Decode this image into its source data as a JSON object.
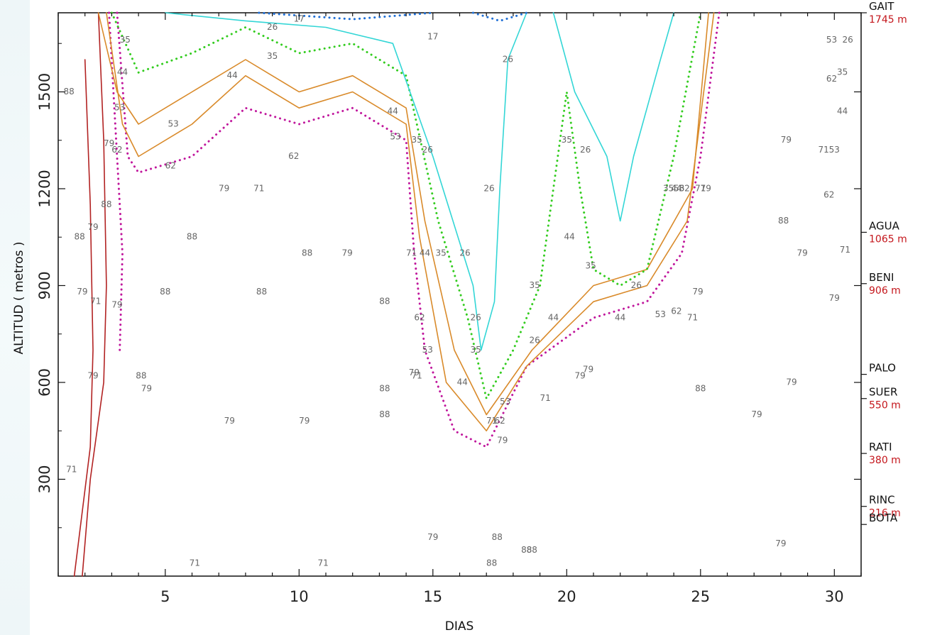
{
  "chart_data": {
    "type": "contour",
    "xlabel": "DIAS",
    "ylabel": "ALTITUD ( metros )",
    "xlim": [
      1,
      31
    ],
    "ylim": [
      0,
      1745
    ],
    "x_ticks": [
      5,
      10,
      15,
      20,
      25,
      30
    ],
    "y_ticks": [
      300,
      600,
      900,
      1200,
      1500
    ],
    "contour_levels": [
      17,
      26,
      35,
      44,
      53,
      62,
      71,
      79,
      88
    ],
    "level_colors": {
      "17": "#1f6fd6",
      "26": "#33d6d6",
      "35": "#33cc1f",
      "44": "#d98a2a",
      "53": "#d98a2a",
      "62": "#c0169c",
      "71": "#c0169c",
      "79": "#b22222",
      "88": "#b22222"
    },
    "stations": [
      {
        "name": "GAIT",
        "alt": 1745,
        "label": "1745 m"
      },
      {
        "name": "AGUA",
        "alt": 1065,
        "label": "1065 m"
      },
      {
        "name": "BENI",
        "alt": 906,
        "label": "906 m"
      },
      {
        "name": "PALO",
        "alt": 625,
        "label": ""
      },
      {
        "name": "SUER",
        "alt": 550,
        "label": "550 m"
      },
      {
        "name": "RATI",
        "alt": 380,
        "label": "380 m"
      },
      {
        "name": "RINC",
        "alt": 216,
        "label": "216 m"
      },
      {
        "name": "BOTA",
        "alt": 160,
        "label": ""
      }
    ],
    "series": [
      {
        "level": 88,
        "style": "solid",
        "points": [
          [
            2,
            1600
          ],
          [
            2.2,
            1150
          ],
          [
            2.3,
            700
          ],
          [
            2.2,
            400
          ],
          [
            1.6,
            0
          ]
        ]
      },
      {
        "level": 79,
        "style": "solid",
        "points": [
          [
            2.5,
            1745
          ],
          [
            2.7,
            1350
          ],
          [
            2.8,
            900
          ],
          [
            2.7,
            600
          ],
          [
            2.2,
            300
          ],
          [
            1.9,
            0
          ]
        ]
      },
      {
        "level": 71,
        "style": "dotted",
        "points": [
          [
            2.9,
            1745
          ],
          [
            3.2,
            1300
          ],
          [
            3.4,
            1000
          ],
          [
            3.3,
            700
          ]
        ]
      },
      {
        "level": 62,
        "style": "dotted",
        "points": [
          [
            3.2,
            1745
          ],
          [
            3.6,
            1300
          ],
          [
            4,
            1250
          ],
          [
            6,
            1300
          ],
          [
            8,
            1450
          ],
          [
            10,
            1400
          ],
          [
            12,
            1450
          ],
          [
            14,
            1350
          ],
          [
            14.3,
            1000
          ],
          [
            14.7,
            700
          ],
          [
            15.8,
            450
          ],
          [
            17,
            400
          ],
          [
            18.5,
            650
          ],
          [
            21,
            800
          ],
          [
            23,
            850
          ],
          [
            24.3,
            1000
          ],
          [
            25,
            1300
          ],
          [
            25.7,
            1745
          ]
        ]
      },
      {
        "level": 53,
        "style": "solid",
        "points": [
          [
            2.8,
            1745
          ],
          [
            3.4,
            1400
          ],
          [
            4,
            1300
          ],
          [
            6,
            1400
          ],
          [
            8,
            1550
          ],
          [
            10,
            1450
          ],
          [
            12,
            1500
          ],
          [
            14,
            1400
          ],
          [
            14.5,
            1050
          ],
          [
            15.5,
            600
          ],
          [
            17,
            450
          ],
          [
            18.5,
            650
          ],
          [
            21,
            850
          ],
          [
            23,
            900
          ],
          [
            24.5,
            1100
          ],
          [
            25.5,
            1745
          ]
        ]
      },
      {
        "level": 44,
        "style": "solid",
        "points": [
          [
            2.5,
            1745
          ],
          [
            3.2,
            1500
          ],
          [
            4,
            1400
          ],
          [
            6,
            1500
          ],
          [
            8,
            1600
          ],
          [
            10,
            1500
          ],
          [
            12,
            1550
          ],
          [
            14,
            1450
          ],
          [
            14.7,
            1100
          ],
          [
            15.8,
            700
          ],
          [
            17,
            500
          ],
          [
            18.7,
            700
          ],
          [
            21,
            900
          ],
          [
            23,
            950
          ],
          [
            24.7,
            1200
          ],
          [
            25.3,
            1745
          ]
        ]
      },
      {
        "level": 35,
        "style": "dotted",
        "points": [
          [
            3,
            1745
          ],
          [
            4,
            1560
          ],
          [
            6,
            1620
          ],
          [
            8,
            1700
          ],
          [
            10,
            1620
          ],
          [
            12,
            1650
          ],
          [
            14,
            1550
          ],
          [
            15.2,
            1100
          ],
          [
            16.3,
            800
          ],
          [
            17,
            550
          ],
          [
            18,
            700
          ],
          [
            19,
            900
          ],
          [
            19.5,
            1200
          ],
          [
            20,
            1500
          ],
          [
            20.5,
            1200
          ],
          [
            21,
            950
          ],
          [
            22,
            900
          ],
          [
            23,
            950
          ],
          [
            24,
            1300
          ],
          [
            25,
            1745
          ]
        ]
      },
      {
        "level": 26,
        "style": "solid",
        "points": [
          [
            5,
            1745
          ],
          [
            8,
            1720
          ],
          [
            11,
            1700
          ],
          [
            13.5,
            1650
          ],
          [
            15,
            1300
          ],
          [
            16.5,
            900
          ],
          [
            16.8,
            700
          ],
          [
            17.3,
            850
          ],
          [
            17.5,
            1200
          ],
          [
            17.8,
            1600
          ],
          [
            18.5,
            1745
          ]
        ]
      },
      {
        "level": 26,
        "style": "solid",
        "points": [
          [
            19.5,
            1745
          ],
          [
            20.3,
            1500
          ],
          [
            21.5,
            1300
          ],
          [
            22,
            1100
          ],
          [
            22.5,
            1300
          ],
          [
            23.5,
            1600
          ],
          [
            24,
            1745
          ]
        ]
      },
      {
        "level": 17,
        "style": "dotted",
        "points": [
          [
            8.5,
            1745
          ],
          [
            12,
            1725
          ],
          [
            15,
            1745
          ]
        ]
      },
      {
        "level": 17,
        "style": "dotted",
        "points": [
          [
            16.5,
            1745
          ],
          [
            17.5,
            1720
          ],
          [
            18.5,
            1745
          ]
        ]
      }
    ],
    "labels": [
      {
        "text": "88",
        "x": 2.8,
        "y": 1150
      },
      {
        "text": "79",
        "x": 2.9,
        "y": 1340
      },
      {
        "text": "62",
        "x": 3.2,
        "y": 1320
      },
      {
        "text": "53",
        "x": 3.3,
        "y": 1450
      },
      {
        "text": "44",
        "x": 3.4,
        "y": 1560
      },
      {
        "text": "35",
        "x": 3.5,
        "y": 1660
      },
      {
        "text": "62",
        "x": 5.2,
        "y": 1270
      },
      {
        "text": "53",
        "x": 5.3,
        "y": 1400
      },
      {
        "text": "44",
        "x": 7.5,
        "y": 1550
      },
      {
        "text": "35",
        "x": 9,
        "y": 1610
      },
      {
        "text": "26",
        "x": 9,
        "y": 1700
      },
      {
        "text": "17",
        "x": 10,
        "y": 1725
      },
      {
        "text": "79",
        "x": 7.2,
        "y": 1200
      },
      {
        "text": "71",
        "x": 8.5,
        "y": 1200
      },
      {
        "text": "62",
        "x": 9.8,
        "y": 1300
      },
      {
        "text": "88",
        "x": 6,
        "y": 1050
      },
      {
        "text": "53",
        "x": 13.6,
        "y": 1360
      },
      {
        "text": "44",
        "x": 13.5,
        "y": 1440
      },
      {
        "text": "35",
        "x": 14.4,
        "y": 1350
      },
      {
        "text": "26",
        "x": 14.8,
        "y": 1320
      },
      {
        "text": "17",
        "x": 15,
        "y": 1670
      },
      {
        "text": "26",
        "x": 17.8,
        "y": 1600
      },
      {
        "text": "26",
        "x": 17.1,
        "y": 1200
      },
      {
        "text": "35",
        "x": 20,
        "y": 1350
      },
      {
        "text": "26",
        "x": 20.7,
        "y": 1320
      },
      {
        "text": "88",
        "x": 1.4,
        "y": 1500
      },
      {
        "text": "79",
        "x": 2.3,
        "y": 1080
      },
      {
        "text": "88",
        "x": 1.8,
        "y": 1050
      },
      {
        "text": "79",
        "x": 1.9,
        "y": 880
      },
      {
        "text": "71",
        "x": 2.4,
        "y": 850
      },
      {
        "text": "79",
        "x": 3.2,
        "y": 840
      },
      {
        "text": "88",
        "x": 5,
        "y": 880
      },
      {
        "text": "88",
        "x": 8.6,
        "y": 880
      },
      {
        "text": "88",
        "x": 10.3,
        "y": 1000
      },
      {
        "text": "79",
        "x": 11.8,
        "y": 1000
      },
      {
        "text": "88",
        "x": 13.2,
        "y": 850
      },
      {
        "text": "71",
        "x": 14.2,
        "y": 1000
      },
      {
        "text": "62",
        "x": 14.5,
        "y": 800
      },
      {
        "text": "53",
        "x": 14.8,
        "y": 700
      },
      {
        "text": "44",
        "x": 14.7,
        "y": 1000
      },
      {
        "text": "35",
        "x": 15.3,
        "y": 1000
      },
      {
        "text": "26",
        "x": 16.2,
        "y": 1000
      },
      {
        "text": "26",
        "x": 16.6,
        "y": 800
      },
      {
        "text": "35",
        "x": 16.6,
        "y": 700
      },
      {
        "text": "44",
        "x": 16.1,
        "y": 600
      },
      {
        "text": "53",
        "x": 17.7,
        "y": 540
      },
      {
        "text": "62",
        "x": 17.5,
        "y": 480
      },
      {
        "text": "79",
        "x": 17.6,
        "y": 420
      },
      {
        "text": "71",
        "x": 17.2,
        "y": 480
      },
      {
        "text": "26",
        "x": 18.8,
        "y": 730
      },
      {
        "text": "35",
        "x": 18.8,
        "y": 900
      },
      {
        "text": "44",
        "x": 19.5,
        "y": 800
      },
      {
        "text": "44",
        "x": 20.1,
        "y": 1050
      },
      {
        "text": "35",
        "x": 20.9,
        "y": 960
      },
      {
        "text": "71",
        "x": 19.2,
        "y": 550
      },
      {
        "text": "79",
        "x": 20.8,
        "y": 640
      },
      {
        "text": "26",
        "x": 22.6,
        "y": 900
      },
      {
        "text": "44",
        "x": 22,
        "y": 800
      },
      {
        "text": "53",
        "x": 23.5,
        "y": 810
      },
      {
        "text": "62",
        "x": 24.1,
        "y": 820
      },
      {
        "text": "71",
        "x": 24.7,
        "y": 800
      },
      {
        "text": "79",
        "x": 24.9,
        "y": 880
      },
      {
        "text": "88",
        "x": 25,
        "y": 580
      },
      {
        "text": "35",
        "x": 23.8,
        "y": 1200
      },
      {
        "text": "44",
        "x": 24.1,
        "y": 1200
      },
      {
        "text": "53",
        "x": 24.2,
        "y": 1200
      },
      {
        "text": "62",
        "x": 24.4,
        "y": 1200
      },
      {
        "text": "71",
        "x": 25,
        "y": 1200
      },
      {
        "text": "79",
        "x": 25.2,
        "y": 1200
      },
      {
        "text": "79",
        "x": 28.2,
        "y": 1350
      },
      {
        "text": "88",
        "x": 28.1,
        "y": 1100
      },
      {
        "text": "79",
        "x": 27.1,
        "y": 500
      },
      {
        "text": "79",
        "x": 28.4,
        "y": 600
      },
      {
        "text": "79",
        "x": 30,
        "y": 860
      },
      {
        "text": "79",
        "x": 28.8,
        "y": 1000
      },
      {
        "text": "71",
        "x": 30.4,
        "y": 1010
      },
      {
        "text": "62",
        "x": 29.8,
        "y": 1180
      },
      {
        "text": "53",
        "x": 30,
        "y": 1320
      },
      {
        "text": "44",
        "x": 30.3,
        "y": 1440
      },
      {
        "text": "35",
        "x": 30.3,
        "y": 1560
      },
      {
        "text": "26",
        "x": 30.5,
        "y": 1660
      },
      {
        "text": "53",
        "x": 29.9,
        "y": 1660
      },
      {
        "text": "62",
        "x": 29.9,
        "y": 1540
      },
      {
        "text": "71",
        "x": 29.6,
        "y": 1320
      },
      {
        "text": "79",
        "x": 2.3,
        "y": 620
      },
      {
        "text": "79",
        "x": 4.3,
        "y": 580
      },
      {
        "text": "88",
        "x": 4.1,
        "y": 620
      },
      {
        "text": "79",
        "x": 7.4,
        "y": 480
      },
      {
        "text": "79",
        "x": 10.2,
        "y": 480
      },
      {
        "text": "88",
        "x": 13.2,
        "y": 580
      },
      {
        "text": "88",
        "x": 13.2,
        "y": 500
      },
      {
        "text": "79",
        "x": 14.3,
        "y": 630
      },
      {
        "text": "71",
        "x": 14.4,
        "y": 620
      },
      {
        "text": "71",
        "x": 1.5,
        "y": 330
      },
      {
        "text": "79",
        "x": 20.5,
        "y": 620
      },
      {
        "text": "88",
        "x": 18.7,
        "y": 80
      },
      {
        "text": "88",
        "x": 18.5,
        "y": 80
      },
      {
        "text": "79",
        "x": 15,
        "y": 120
      },
      {
        "text": "88",
        "x": 17.4,
        "y": 120
      },
      {
        "text": "71",
        "x": 6.1,
        "y": 40
      },
      {
        "text": "71",
        "x": 10.9,
        "y": 40
      },
      {
        "text": "88",
        "x": 17.2,
        "y": 40
      },
      {
        "text": "79",
        "x": 28,
        "y": 100
      }
    ]
  }
}
